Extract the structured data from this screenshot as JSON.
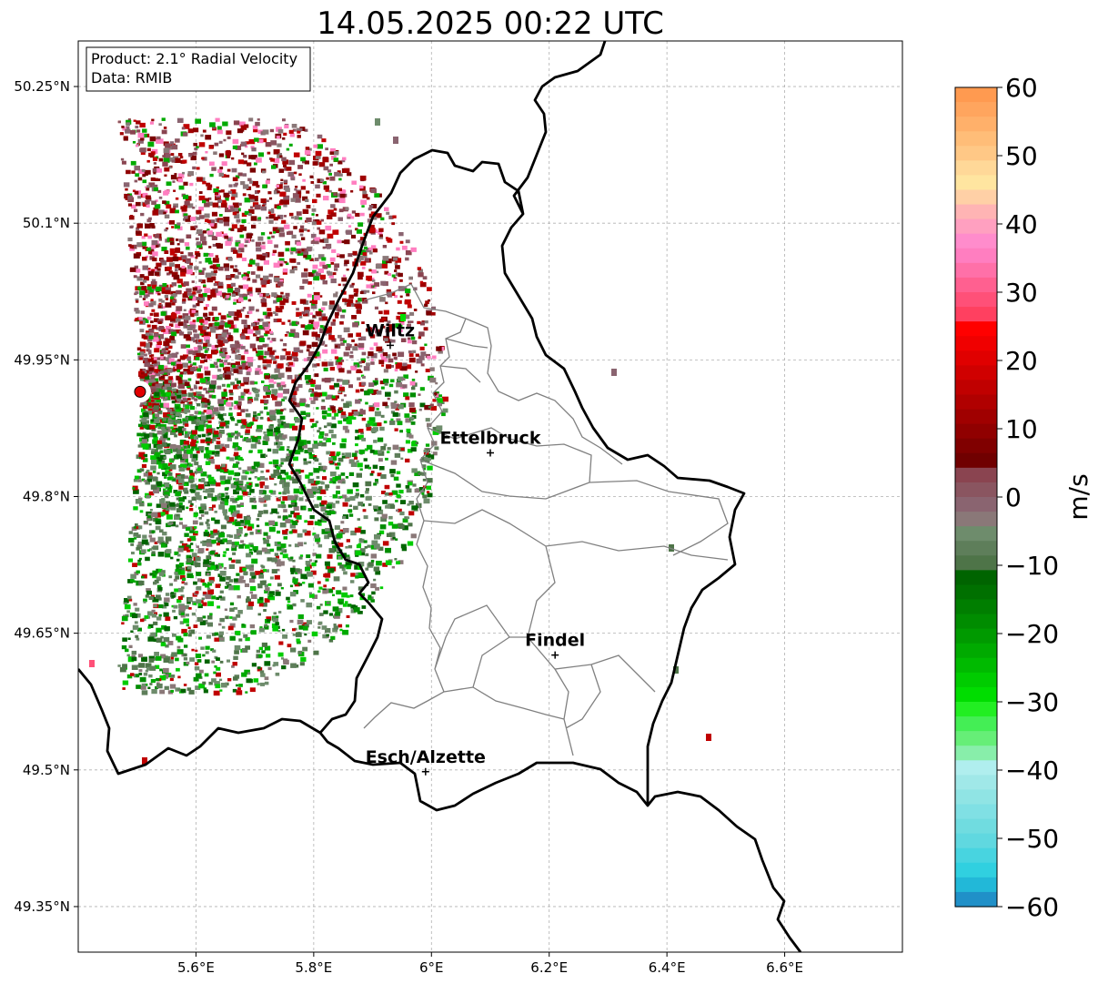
{
  "title": "14.05.2025 00:22 UTC",
  "info_box": {
    "product": "Product: 2.1° Radial Velocity",
    "data": "Data: RMIB"
  },
  "map": {
    "lon_range": [
      5.4,
      6.8
    ],
    "lat_range": [
      49.3,
      50.3
    ],
    "lon_ticks": [
      {
        "value": 5.6,
        "label": "5.6°E"
      },
      {
        "value": 5.8,
        "label": "5.8°E"
      },
      {
        "value": 6.0,
        "label": "6°E"
      },
      {
        "value": 6.2,
        "label": "6.2°E"
      },
      {
        "value": 6.4,
        "label": "6.4°E"
      },
      {
        "value": 6.6,
        "label": "6.6°E"
      }
    ],
    "lat_ticks": [
      {
        "value": 50.25,
        "label": "50.25°N"
      },
      {
        "value": 50.1,
        "label": "50.1°N"
      },
      {
        "value": 49.95,
        "label": "49.95°N"
      },
      {
        "value": 49.8,
        "label": "49.8°N"
      },
      {
        "value": 49.65,
        "label": "49.65°N"
      },
      {
        "value": 49.5,
        "label": "49.5°N"
      },
      {
        "value": 49.35,
        "label": "49.35°N"
      }
    ],
    "radar_site": {
      "lon": 5.505,
      "lat": 49.915,
      "color": "#e00000"
    },
    "cities": [
      {
        "name": "Wiltz",
        "lon": 5.93,
        "lat": 49.966
      },
      {
        "name": "Ettelbruck",
        "lon": 6.1,
        "lat": 49.848
      },
      {
        "name": "Findel",
        "lon": 6.21,
        "lat": 49.626
      },
      {
        "name": "Esch/Alzette",
        "lon": 5.99,
        "lat": 49.498
      }
    ]
  },
  "colorbar": {
    "label": "m/s",
    "min": -60,
    "max": 60,
    "ticks": [
      {
        "value": 60,
        "label": "60"
      },
      {
        "value": 50,
        "label": "50"
      },
      {
        "value": 40,
        "label": "40"
      },
      {
        "value": 30,
        "label": "30"
      },
      {
        "value": 20,
        "label": "20"
      },
      {
        "value": 10,
        "label": "10"
      },
      {
        "value": 0,
        "label": "0"
      },
      {
        "value": -10,
        "label": "−10"
      },
      {
        "value": -20,
        "label": "−20"
      },
      {
        "value": -30,
        "label": "−30"
      },
      {
        "value": -40,
        "label": "−40"
      },
      {
        "value": -50,
        "label": "−50"
      },
      {
        "value": -60,
        "label": "−60"
      }
    ],
    "colors_top_to_bottom": [
      "#ff9a50",
      "#ffa55e",
      "#ffb06a",
      "#ffbd78",
      "#ffc886",
      "#ffd898",
      "#ffe5a0",
      "#ffd0a6",
      "#ffb4b4",
      "#ffa0c0",
      "#ff8ccc",
      "#ff7ec0",
      "#ff70a8",
      "#ff6090",
      "#ff5078",
      "#ff4060",
      "#ff0000",
      "#f00000",
      "#e00000",
      "#d00000",
      "#c00000",
      "#b00000",
      "#a00000",
      "#900000",
      "#800000",
      "#700000",
      "#8a4450",
      "#8a5560",
      "#8a6470",
      "#8a7878",
      "#6e8c6c",
      "#5e7e5a",
      "#4e7448",
      "#006400",
      "#007000",
      "#007e00",
      "#008c00",
      "#009a00",
      "#00aa00",
      "#00ba00",
      "#00cc00",
      "#00dd00",
      "#22ee22",
      "#44ee55",
      "#66ee77",
      "#88eeaa",
      "#b0eeee",
      "#a0e8e8",
      "#90e4e4",
      "#80e0e4",
      "#70dce0",
      "#60d8e0",
      "#48d4e0",
      "#30d0e0",
      "#22b8d8",
      "#2090c8"
    ]
  }
}
